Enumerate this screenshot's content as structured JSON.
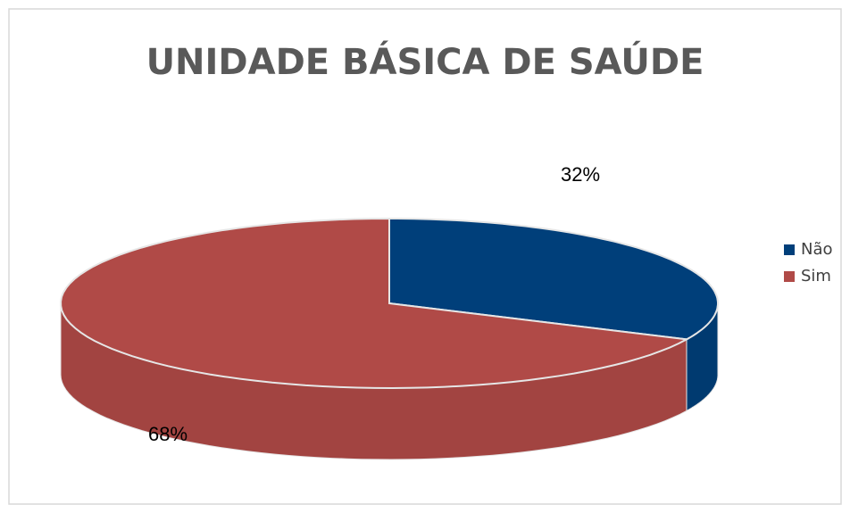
{
  "chart_data": {
    "type": "pie",
    "title": "UNIDADE BÁSICA DE SAÚDE",
    "categories": [
      "Não",
      "Sim"
    ],
    "values": [
      32,
      68
    ],
    "value_labels": [
      "32%",
      "68%"
    ],
    "colors": [
      "#003f7a",
      "#b04a47"
    ],
    "legend": "right"
  }
}
